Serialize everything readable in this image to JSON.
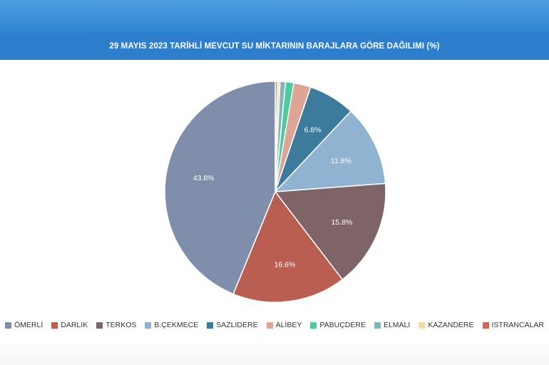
{
  "header": {
    "title": "29 MAYIS 2023 TARİHLİ MEVCUT SU MİKTARININ BARAJLARA GÖRE DAĞILIMI (%)"
  },
  "chart_data": {
    "type": "pie",
    "title": "29 MAYIS 2023 TARİHLİ MEVCUT SU MİKTARININ BARAJLARA GÖRE DAĞILIMI (%)",
    "legend_position": "bottom",
    "label_threshold": 5,
    "slices": [
      {
        "name": "ISTRANCALAR",
        "value": 0.3,
        "color": "#d9654a"
      },
      {
        "name": "KAZANDERE",
        "value": 0.4,
        "color": "#f3dda2"
      },
      {
        "name": "ELMALI",
        "value": 0.8,
        "color": "#7fb5c0"
      },
      {
        "name": "PABUÇDERE",
        "value": 1.2,
        "color": "#4ccb9c"
      },
      {
        "name": "ALİBEY",
        "value": 2.5,
        "color": "#dca595"
      },
      {
        "name": "SAZLIDERE",
        "value": 6.8,
        "color": "#3c7b9b",
        "label": "6.8%"
      },
      {
        "name": "B.ÇEKMECE",
        "value": 11.8,
        "color": "#8fb3d1",
        "label": "11.8%"
      },
      {
        "name": "TERKOS",
        "value": 15.8,
        "color": "#7e6467",
        "label": "15.8%"
      },
      {
        "name": "DARLIK",
        "value": 16.6,
        "color": "#b95e51",
        "label": "16.6%"
      },
      {
        "name": "ÖMERLİ",
        "value": 43.8,
        "color": "#7f8fab",
        "label": "43.8%"
      }
    ],
    "legend_order": [
      "ÖMERLİ",
      "DARLIK",
      "TERKOS",
      "B.ÇEKMECE",
      "SAZLIDERE",
      "ALİBEY",
      "PABUÇDERE",
      "ELMALI",
      "KAZANDERE",
      "ISTRANCALAR"
    ]
  }
}
